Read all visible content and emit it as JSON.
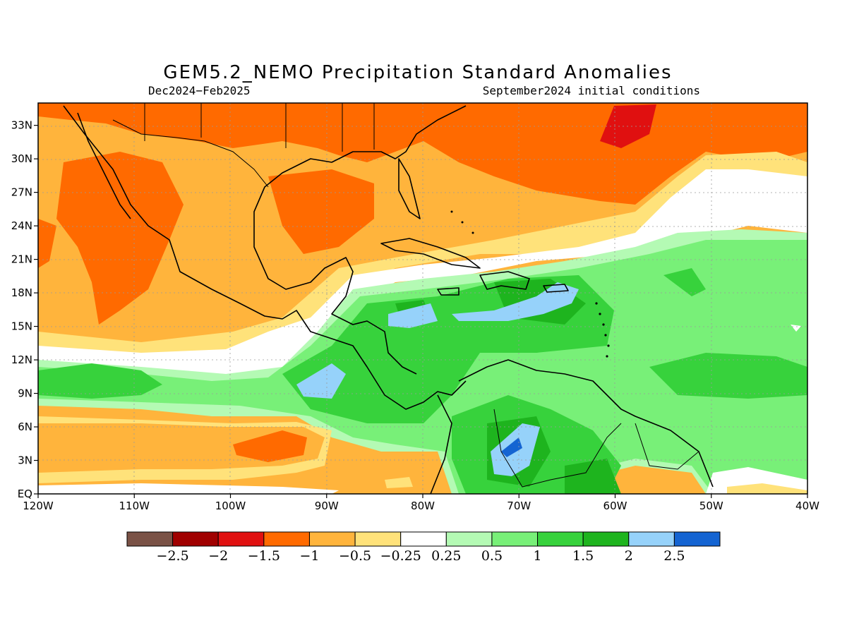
{
  "title": "GEM5.2_NEMO Precipitation Standard Anomalies",
  "subtitle_left": "Dec2024−Feb2025",
  "subtitle_right": "September2024 initial conditions",
  "lon_labels": [
    "120W",
    "110W",
    "100W",
    "90W",
    "80W",
    "70W",
    "60W",
    "50W",
    "40W"
  ],
  "lat_labels": [
    "33N",
    "30N",
    "27N",
    "24N",
    "21N",
    "18N",
    "15N",
    "12N",
    "9N",
    "6N",
    "3N",
    "EQ"
  ],
  "colorbar": {
    "colors": [
      "#7a5246",
      "#a00000",
      "#e01010",
      "#ff6a00",
      "#ffb43c",
      "#ffe27a",
      "#ffffff",
      "#b4fab4",
      "#78f078",
      "#37d23c",
      "#1eb41e",
      "#96d2fa",
      "#1464d2"
    ],
    "labels": [
      "−2.5",
      "−2",
      "−1.5",
      "−1",
      "−0.5",
      "−0.25",
      "0.25",
      "0.5",
      "1",
      "1.5",
      "2",
      "2.5"
    ]
  }
}
